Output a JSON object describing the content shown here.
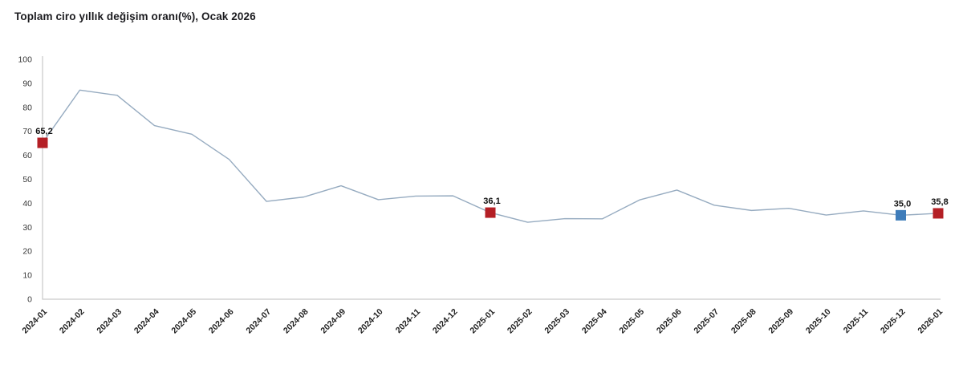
{
  "title": "Toplam ciro yıllık değişim oranı(%), Ocak 2026",
  "chart_data": {
    "type": "line",
    "title": "Toplam ciro yıllık değişim oranı(%), Ocak 2026",
    "x": [
      "2024-01",
      "2024-02",
      "2024-03",
      "2024-04",
      "2024-05",
      "2024-06",
      "2024-07",
      "2024-08",
      "2024-09",
      "2024-10",
      "2024-11",
      "2024-12",
      "2025-01",
      "2025-02",
      "2025-03",
      "2025-04",
      "2025-05",
      "2025-06",
      "2025-07",
      "2025-08",
      "2025-09",
      "2025-10",
      "2025-11",
      "2025-12",
      "2026-01"
    ],
    "values": [
      65.2,
      87.2,
      85.0,
      72.4,
      68.8,
      58.3,
      40.8,
      42.6,
      47.3,
      41.5,
      43.0,
      43.1,
      36.1,
      32.1,
      33.6,
      33.5,
      41.4,
      45.5,
      39.2,
      37.0,
      37.9,
      35.1,
      36.8,
      35.0,
      35.8
    ],
    "ylim": [
      0,
      100
    ],
    "y_ticks": [
      0,
      10,
      20,
      30,
      40,
      50,
      60,
      70,
      80,
      90,
      100
    ],
    "grid": false,
    "legend_position": "none",
    "line_color": "#96abc0",
    "axis_color": "#c9c9c9",
    "highlighted_points": [
      {
        "x": "2024-01",
        "value": 65.2,
        "label": "65,2",
        "marker_color": "#b41f25"
      },
      {
        "x": "2025-01",
        "value": 36.1,
        "label": "36,1",
        "marker_color": "#b41f25"
      },
      {
        "x": "2025-12",
        "value": 35.0,
        "label": "35,0",
        "marker_color": "#3e7cba"
      },
      {
        "x": "2026-01",
        "value": 35.8,
        "label": "35,8",
        "marker_color": "#b41f25"
      }
    ]
  }
}
